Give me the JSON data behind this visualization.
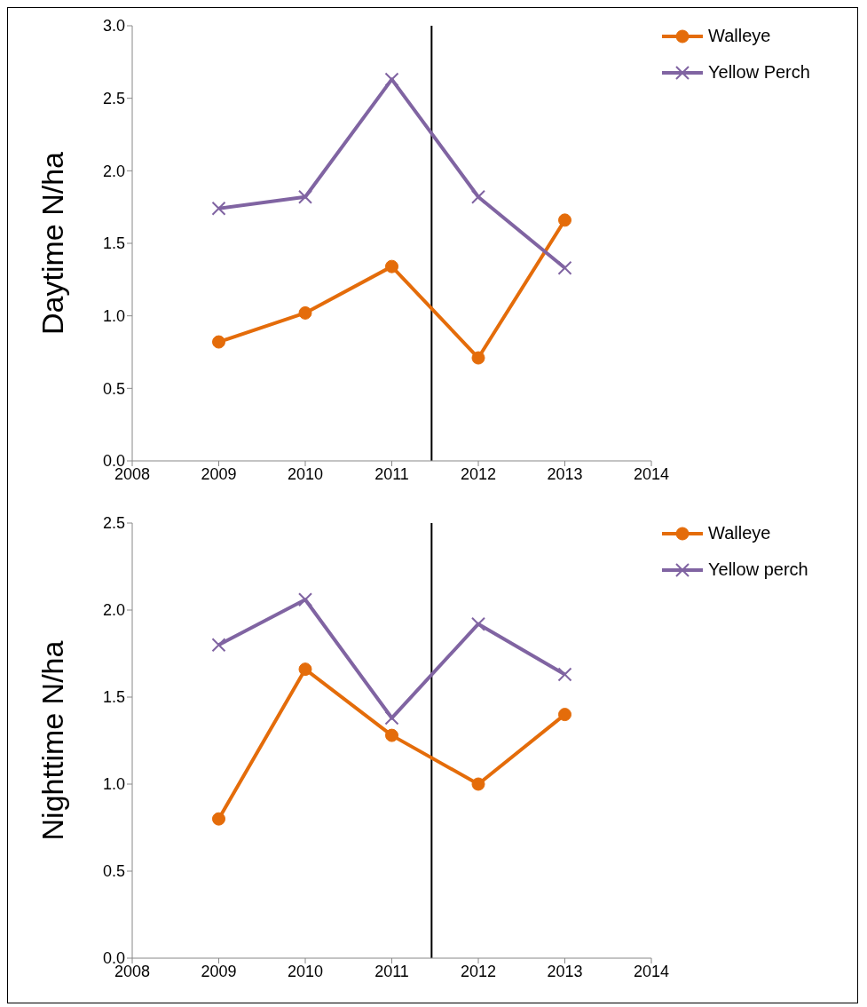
{
  "chart_data": [
    {
      "type": "line",
      "ylabel": "Daytime N/ha",
      "x": [
        2009,
        2010,
        2011,
        2012,
        2013
      ],
      "xlim": [
        2008,
        2014
      ],
      "xticks": [
        2008,
        2009,
        2010,
        2011,
        2012,
        2013,
        2014
      ],
      "ylim": [
        0,
        3
      ],
      "yticks": [
        {
          "value": 0,
          "label": "0.0"
        },
        {
          "value": 0.5,
          "label": "0.5"
        },
        {
          "value": 1,
          "label": "1.0"
        },
        {
          "value": 1.5,
          "label": "1.5"
        },
        {
          "value": 2,
          "label": "2.0"
        },
        {
          "value": 2.5,
          "label": "2.5"
        },
        {
          "value": 3,
          "label": "3.0"
        }
      ],
      "grid": false,
      "legend": "top right",
      "ref_lines": [
        {
          "axis": "x",
          "value": 2011.46,
          "color": "#000000"
        }
      ],
      "series": [
        {
          "name": "Walleye",
          "color": "#e46c0a",
          "marker": "circle",
          "values": [
            0.82,
            1.02,
            1.34,
            0.71,
            1.66
          ]
        },
        {
          "name": "Yellow Perch",
          "color": "#8064a2",
          "marker": "cross",
          "values": [
            1.74,
            1.82,
            2.63,
            1.82,
            1.33
          ]
        }
      ]
    },
    {
      "type": "line",
      "ylabel": "Nighttime N/ha",
      "x": [
        2009,
        2010,
        2011,
        2012,
        2013
      ],
      "xlim": [
        2008,
        2014
      ],
      "xticks": [
        2008,
        2009,
        2010,
        2011,
        2012,
        2013,
        2014
      ],
      "ylim": [
        0,
        2.5
      ],
      "yticks": [
        {
          "value": 0,
          "label": "0.0"
        },
        {
          "value": 0.5,
          "label": "0.5"
        },
        {
          "value": 1,
          "label": "1.0"
        },
        {
          "value": 1.5,
          "label": "1.5"
        },
        {
          "value": 2,
          "label": "2.0"
        },
        {
          "value": 2.5,
          "label": "2.5"
        }
      ],
      "grid": false,
      "legend": "top right",
      "ref_lines": [
        {
          "axis": "x",
          "value": 2011.46,
          "color": "#000000"
        }
      ],
      "series": [
        {
          "name": "Walleye",
          "color": "#e46c0a",
          "marker": "circle",
          "values": [
            0.8,
            1.66,
            1.28,
            1.0,
            1.4
          ]
        },
        {
          "name": "Yellow perch",
          "color": "#8064a2",
          "marker": "cross",
          "values": [
            1.8,
            2.06,
            1.38,
            1.92,
            1.63
          ]
        }
      ]
    }
  ]
}
